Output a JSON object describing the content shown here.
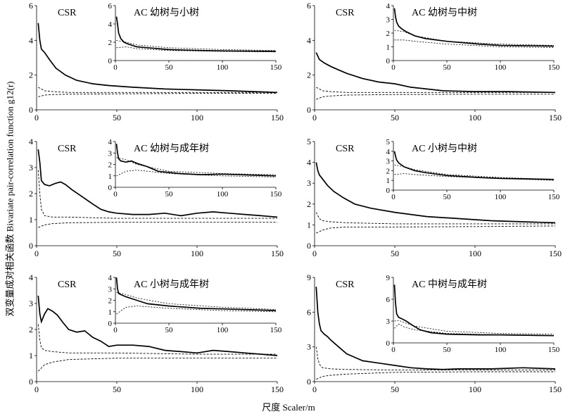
{
  "figure": {
    "ylabel": "双变量成对相关函数 Bivariate pair-correlation function g12(r)",
    "xlabel": "尺度 Scaler/m"
  },
  "chart_data": [
    {
      "type": "line",
      "main_label": "CSR",
      "inset_label": "AC  幼树与小树",
      "xlim": [
        0,
        150
      ],
      "ylim": [
        0,
        6
      ],
      "yticks": [
        0,
        2,
        4,
        6
      ],
      "xticks": [
        0,
        50,
        100,
        150
      ],
      "main": {
        "observed": {
          "x": [
            1,
            2,
            3,
            5,
            8,
            12,
            18,
            25,
            35,
            45,
            60,
            80,
            100,
            120,
            150
          ],
          "y": [
            5.0,
            4.0,
            3.5,
            3.3,
            2.9,
            2.4,
            2.0,
            1.7,
            1.5,
            1.4,
            1.3,
            1.2,
            1.15,
            1.1,
            1.0
          ]
        },
        "upper": {
          "x": [
            1,
            5,
            10,
            20,
            50,
            100,
            150
          ],
          "y": [
            1.3,
            1.1,
            1.05,
            1.0,
            1.0,
            1.0,
            1.0
          ]
        },
        "lower": {
          "x": [
            1,
            5,
            10,
            20,
            50,
            100,
            150
          ],
          "y": [
            0.75,
            0.85,
            0.88,
            0.9,
            0.92,
            0.95,
            0.95
          ]
        }
      },
      "inset": {
        "ylim": [
          0,
          6
        ],
        "yticks": [
          0,
          2,
          4,
          6
        ],
        "xticks": [
          0,
          50,
          100,
          150
        ],
        "observed": {
          "x": [
            1,
            2,
            3,
            5,
            8,
            12,
            20,
            30,
            50,
            80,
            100,
            150
          ],
          "y": [
            4.8,
            4.0,
            3.0,
            2.4,
            2.0,
            1.8,
            1.5,
            1.4,
            1.2,
            1.1,
            1.05,
            1.0
          ]
        },
        "upper": {
          "x": [
            1,
            10,
            20,
            50,
            100,
            150
          ],
          "y": [
            2.2,
            2.0,
            1.7,
            1.4,
            1.2,
            1.1
          ]
        },
        "lower": {
          "x": [
            1,
            10,
            20,
            50,
            100,
            150
          ],
          "y": [
            1.4,
            1.5,
            1.3,
            1.1,
            1.0,
            0.95
          ]
        }
      }
    },
    {
      "type": "line",
      "main_label": "CSR",
      "inset_label": "AC  幼树与中树",
      "xlim": [
        0,
        150
      ],
      "ylim": [
        0,
        6
      ],
      "yticks": [
        0,
        2,
        4,
        6
      ],
      "xticks": [
        0,
        50,
        100,
        150
      ],
      "main": {
        "observed": {
          "x": [
            1,
            3,
            6,
            10,
            15,
            20,
            30,
            40,
            50,
            60,
            70,
            80,
            100,
            120,
            150
          ],
          "y": [
            3.3,
            2.9,
            2.7,
            2.5,
            2.3,
            2.1,
            1.8,
            1.6,
            1.5,
            1.3,
            1.2,
            1.1,
            1.05,
            1.05,
            1.0
          ]
        },
        "upper": {
          "x": [
            1,
            5,
            10,
            20,
            50,
            100,
            150
          ],
          "y": [
            1.3,
            1.1,
            1.05,
            1.0,
            1.0,
            1.0,
            1.0
          ]
        },
        "lower": {
          "x": [
            1,
            5,
            10,
            20,
            50,
            100,
            150
          ],
          "y": [
            0.6,
            0.75,
            0.8,
            0.85,
            0.88,
            0.9,
            0.9
          ]
        }
      },
      "inset": {
        "ylim": [
          0,
          4
        ],
        "yticks": [
          0,
          1,
          2,
          3,
          4
        ],
        "xticks": [
          0,
          50,
          100,
          150
        ],
        "observed": {
          "x": [
            1,
            2,
            3,
            5,
            8,
            12,
            20,
            30,
            50,
            80,
            100,
            150
          ],
          "y": [
            3.8,
            3.2,
            2.8,
            2.5,
            2.3,
            2.1,
            1.8,
            1.6,
            1.4,
            1.2,
            1.1,
            1.05
          ]
        },
        "upper": {
          "x": [
            1,
            10,
            20,
            50,
            100,
            150
          ],
          "y": [
            2.2,
            2.1,
            1.8,
            1.4,
            1.2,
            1.1
          ]
        },
        "lower": {
          "x": [
            1,
            10,
            20,
            50,
            100,
            150
          ],
          "y": [
            1.5,
            1.5,
            1.4,
            1.2,
            1.0,
            0.95
          ]
        }
      }
    },
    {
      "type": "line",
      "main_label": "CSR",
      "inset_label": "AC  幼树与成年树",
      "xlim": [
        0,
        150
      ],
      "ylim": [
        0,
        4
      ],
      "yticks": [
        0,
        1,
        2,
        3,
        4
      ],
      "xticks": [
        0,
        50,
        100,
        150
      ],
      "main": {
        "observed": {
          "x": [
            1,
            2,
            3,
            5,
            8,
            12,
            15,
            18,
            22,
            28,
            35,
            40,
            45,
            50,
            60,
            70,
            80,
            90,
            100,
            110,
            120,
            130,
            140,
            150
          ],
          "y": [
            3.7,
            3.2,
            2.5,
            2.35,
            2.3,
            2.4,
            2.45,
            2.35,
            2.15,
            1.9,
            1.6,
            1.4,
            1.3,
            1.25,
            1.2,
            1.2,
            1.25,
            1.15,
            1.25,
            1.3,
            1.25,
            1.2,
            1.15,
            1.1
          ]
        },
        "upper": {
          "x": [
            1,
            2,
            3,
            5,
            10,
            20,
            50,
            100,
            150
          ],
          "y": [
            2.9,
            2.0,
            1.4,
            1.15,
            1.1,
            1.1,
            1.05,
            1.05,
            1.05
          ]
        },
        "lower": {
          "x": [
            1,
            5,
            10,
            20,
            50,
            100,
            150
          ],
          "y": [
            0.7,
            0.8,
            0.85,
            0.88,
            0.9,
            0.9,
            0.9
          ]
        }
      },
      "inset": {
        "ylim": [
          0,
          4
        ],
        "yticks": [
          0,
          1,
          2,
          3,
          4
        ],
        "xticks": [
          0,
          50,
          100,
          150
        ],
        "observed": {
          "x": [
            1,
            2,
            3,
            5,
            10,
            15,
            20,
            30,
            40,
            60,
            80,
            100,
            150
          ],
          "y": [
            3.8,
            3.0,
            2.5,
            2.3,
            2.2,
            2.3,
            2.1,
            1.8,
            1.4,
            1.2,
            1.1,
            1.15,
            1.0
          ]
        },
        "upper": {
          "x": [
            1,
            10,
            20,
            50,
            100,
            150
          ],
          "y": [
            2.6,
            2.4,
            2.0,
            1.4,
            1.2,
            1.1
          ]
        },
        "lower": {
          "x": [
            1,
            10,
            20,
            50,
            100,
            150
          ],
          "y": [
            1.0,
            1.4,
            1.5,
            1.2,
            1.0,
            0.9
          ]
        }
      }
    },
    {
      "type": "line",
      "main_label": "CSR",
      "inset_label": "AC  小树与中树",
      "xlim": [
        0,
        150
      ],
      "ylim": [
        0,
        5
      ],
      "yticks": [
        0,
        1,
        2,
        3,
        4,
        5
      ],
      "xticks": [
        0,
        50,
        100,
        150
      ],
      "main": {
        "observed": {
          "x": [
            1,
            2,
            3,
            5,
            8,
            12,
            18,
            25,
            35,
            50,
            70,
            90,
            110,
            130,
            150
          ],
          "y": [
            4.0,
            3.6,
            3.4,
            3.2,
            2.9,
            2.6,
            2.3,
            2.0,
            1.8,
            1.6,
            1.4,
            1.3,
            1.2,
            1.15,
            1.1
          ]
        },
        "upper": {
          "x": [
            1,
            3,
            5,
            10,
            20,
            50,
            100,
            150
          ],
          "y": [
            1.6,
            1.3,
            1.2,
            1.15,
            1.1,
            1.05,
            1.05,
            1.05
          ]
        },
        "lower": {
          "x": [
            1,
            5,
            10,
            20,
            50,
            100,
            150
          ],
          "y": [
            0.6,
            0.75,
            0.85,
            0.9,
            0.9,
            0.92,
            0.95
          ]
        }
      },
      "inset": {
        "ylim": [
          0,
          5
        ],
        "yticks": [
          0,
          1,
          2,
          3,
          4,
          5
        ],
        "xticks": [
          0,
          50,
          100,
          150
        ],
        "observed": {
          "x": [
            1,
            2,
            3,
            5,
            10,
            20,
            30,
            50,
            80,
            100,
            150
          ],
          "y": [
            4.0,
            3.5,
            3.1,
            2.8,
            2.4,
            2.0,
            1.8,
            1.5,
            1.3,
            1.2,
            1.1
          ]
        },
        "upper": {
          "x": [
            1,
            10,
            20,
            50,
            100,
            150
          ],
          "y": [
            2.6,
            2.4,
            2.1,
            1.6,
            1.3,
            1.1
          ]
        },
        "lower": {
          "x": [
            1,
            10,
            20,
            50,
            100,
            150
          ],
          "y": [
            1.6,
            1.7,
            1.6,
            1.4,
            1.2,
            1.0
          ]
        }
      }
    },
    {
      "type": "line",
      "main_label": "CSR",
      "inset_label": "AC  小树与成年树",
      "xlim": [
        0,
        150
      ],
      "ylim": [
        0,
        4
      ],
      "yticks": [
        0,
        1,
        2,
        3,
        4
      ],
      "xticks": [
        0,
        50,
        100,
        150
      ],
      "main": {
        "observed": {
          "x": [
            1,
            2,
            3,
            5,
            7,
            10,
            13,
            16,
            20,
            25,
            30,
            35,
            40,
            45,
            50,
            60,
            70,
            80,
            90,
            100,
            110,
            120,
            130,
            140,
            150
          ],
          "y": [
            3.3,
            2.6,
            2.3,
            2.6,
            2.8,
            2.7,
            2.55,
            2.3,
            2.0,
            1.9,
            1.95,
            1.7,
            1.55,
            1.35,
            1.4,
            1.4,
            1.35,
            1.2,
            1.15,
            1.1,
            1.2,
            1.15,
            1.1,
            1.05,
            1.0
          ]
        },
        "upper": {
          "x": [
            1,
            2,
            3,
            5,
            10,
            20,
            50,
            100,
            150
          ],
          "y": [
            2.2,
            1.6,
            1.3,
            1.2,
            1.15,
            1.1,
            1.1,
            1.05,
            1.05
          ]
        },
        "lower": {
          "x": [
            1,
            5,
            10,
            20,
            50,
            100,
            150
          ],
          "y": [
            0.4,
            0.65,
            0.75,
            0.85,
            0.9,
            0.9,
            0.9
          ]
        }
      },
      "inset": {
        "ylim": [
          0,
          4
        ],
        "yticks": [
          0,
          1,
          2,
          3,
          4
        ],
        "xticks": [
          0,
          50,
          100,
          150
        ],
        "observed": {
          "x": [
            1,
            2,
            3,
            5,
            10,
            20,
            30,
            50,
            80,
            100,
            150
          ],
          "y": [
            4.0,
            3.0,
            2.6,
            2.5,
            2.3,
            2.0,
            1.7,
            1.5,
            1.3,
            1.25,
            1.1
          ]
        },
        "upper": {
          "x": [
            1,
            10,
            20,
            50,
            100,
            150
          ],
          "y": [
            2.7,
            2.5,
            2.2,
            1.7,
            1.4,
            1.2
          ]
        },
        "lower": {
          "x": [
            1,
            10,
            20,
            50,
            100,
            150
          ],
          "y": [
            0.8,
            1.4,
            1.5,
            1.3,
            1.1,
            1.0
          ]
        }
      }
    },
    {
      "type": "line",
      "main_label": "CSR",
      "inset_label": "AC  中树与成年树",
      "xlim": [
        0,
        150
      ],
      "ylim": [
        0,
        9
      ],
      "yticks": [
        0,
        3,
        6,
        9
      ],
      "xticks": [
        0,
        50,
        100,
        150
      ],
      "main": {
        "observed": {
          "x": [
            1,
            2,
            3,
            4,
            6,
            8,
            10,
            15,
            20,
            30,
            40,
            50,
            60,
            70,
            80,
            90,
            100,
            110,
            120,
            130,
            140,
            150
          ],
          "y": [
            8.2,
            6.0,
            5.0,
            4.4,
            4.1,
            3.9,
            3.6,
            3.0,
            2.4,
            1.8,
            1.6,
            1.4,
            1.2,
            1.1,
            1.05,
            1.1,
            1.1,
            1.1,
            1.15,
            1.2,
            1.15,
            1.1
          ]
        },
        "upper": {
          "x": [
            1,
            2,
            3,
            5,
            10,
            20,
            50,
            100,
            150
          ],
          "y": [
            3.0,
            2.0,
            1.5,
            1.2,
            1.1,
            1.05,
            1.0,
            1.0,
            1.0
          ]
        },
        "lower": {
          "x": [
            1,
            5,
            10,
            20,
            50,
            100,
            150
          ],
          "y": [
            0.2,
            0.45,
            0.55,
            0.65,
            0.8,
            0.85,
            0.85
          ]
        }
      },
      "inset": {
        "ylim": [
          0,
          9
        ],
        "yticks": [
          0,
          3,
          6,
          9
        ],
        "xticks": [
          0,
          50,
          100,
          150
        ],
        "observed": {
          "x": [
            1,
            2,
            3,
            5,
            8,
            12,
            18,
            25,
            35,
            50,
            80,
            100,
            150
          ],
          "y": [
            8.0,
            5.5,
            4.0,
            3.5,
            3.3,
            3.0,
            2.4,
            1.8,
            1.4,
            1.2,
            1.1,
            1.1,
            1.0
          ]
        },
        "upper": {
          "x": [
            1,
            5,
            10,
            20,
            50,
            100,
            150
          ],
          "y": [
            3.0,
            3.1,
            2.8,
            2.3,
            1.6,
            1.3,
            1.2
          ]
        },
        "lower": {
          "x": [
            1,
            5,
            10,
            20,
            50,
            100,
            150
          ],
          "y": [
            2.0,
            2.6,
            2.2,
            1.8,
            1.3,
            1.1,
            1.0
          ]
        }
      }
    }
  ]
}
